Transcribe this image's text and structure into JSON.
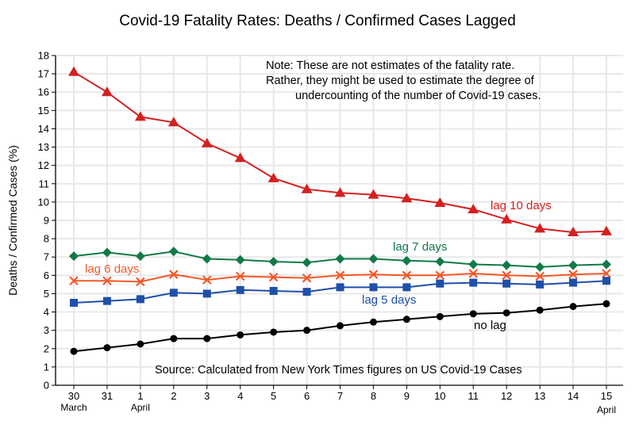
{
  "chart_data": {
    "type": "line",
    "title": "Covid-19 Fatality Rates:  Deaths / Confirmed Cases Lagged",
    "xlabel": "",
    "ylabel": "Deaths / Confirmed Cases (%)",
    "ylim": [
      0,
      18
    ],
    "yticks": [
      "0",
      "1",
      "2",
      "3",
      "4",
      "5",
      "6",
      "7",
      "8",
      "9",
      "10",
      "11",
      "12",
      "13",
      "14",
      "15",
      "16",
      "17",
      "18"
    ],
    "grid": true,
    "categories": [
      "30",
      "31",
      "1",
      "2",
      "3",
      "4",
      "5",
      "6",
      "7",
      "8",
      "9",
      "10",
      "11",
      "12",
      "13",
      "14",
      "15"
    ],
    "month_labels": [
      {
        "index": 0,
        "text": "March"
      },
      {
        "index": 2,
        "text": "April"
      },
      {
        "index": 16,
        "text": "April"
      }
    ],
    "series": [
      {
        "name": "lag 10 days",
        "color": "#d42020",
        "marker": "triangle",
        "values": [
          17.1,
          16.0,
          14.65,
          14.35,
          13.2,
          12.4,
          11.3,
          10.7,
          10.5,
          10.4,
          10.2,
          9.95,
          9.6,
          9.05,
          8.55,
          8.35,
          8.4
        ]
      },
      {
        "name": "lag 7 days",
        "color": "#127a48",
        "marker": "diamond",
        "values": [
          7.05,
          7.25,
          7.05,
          7.3,
          6.9,
          6.85,
          6.75,
          6.7,
          6.9,
          6.9,
          6.8,
          6.75,
          6.6,
          6.55,
          6.45,
          6.55,
          6.6
        ]
      },
      {
        "name": "lag 6 days",
        "color": "#f25a2a",
        "marker": "x",
        "values": [
          5.7,
          5.7,
          5.65,
          6.05,
          5.75,
          5.95,
          5.9,
          5.85,
          6.0,
          6.05,
          6.0,
          6.0,
          6.1,
          6.0,
          5.95,
          6.05,
          6.1
        ]
      },
      {
        "name": "lag 5 days",
        "color": "#1f4fa8",
        "marker": "square",
        "values": [
          4.5,
          4.6,
          4.7,
          5.05,
          5.0,
          5.2,
          5.15,
          5.1,
          5.35,
          5.35,
          5.35,
          5.55,
          5.6,
          5.55,
          5.5,
          5.6,
          5.7
        ]
      },
      {
        "name": "no lag",
        "color": "#000000",
        "marker": "circle",
        "values": [
          1.85,
          2.05,
          2.25,
          2.55,
          2.55,
          2.75,
          2.9,
          3.0,
          3.25,
          3.45,
          3.6,
          3.75,
          3.9,
          3.95,
          4.1,
          4.3,
          4.45
        ]
      }
    ],
    "annotations": {
      "note_lines": [
        "Note:  These are not estimates of the fatality rate.",
        "Rather, they might be used to estimate the degree of",
        "undercounting of the number of Covid-19 cases."
      ],
      "source": "Source:  Calculated from New York Times figures on US Covid-19 Cases"
    }
  }
}
